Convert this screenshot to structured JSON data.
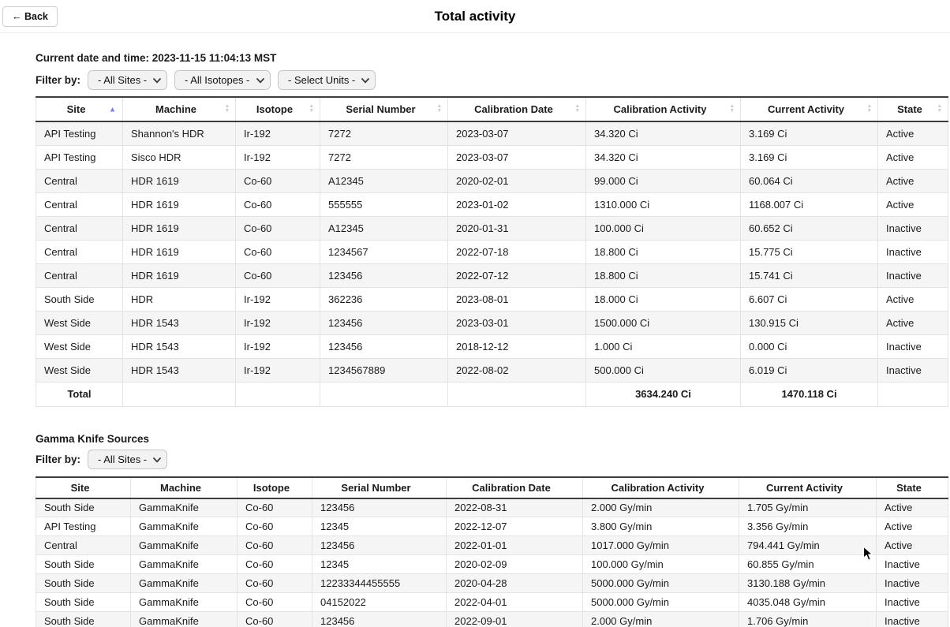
{
  "page": {
    "title": "Total activity",
    "back_label": "← Back"
  },
  "datetime_line": "Current date and time: 2023-11-15 11:04:13 MST",
  "hdr_section": {
    "filter_label": "Filter by:",
    "filters": [
      {
        "name": "sites",
        "value": "- All Sites -"
      },
      {
        "name": "isotopes",
        "value": "- All Isotopes -"
      },
      {
        "name": "units",
        "value": "- Select Units -"
      }
    ],
    "table": {
      "columns": [
        {
          "label": "Site",
          "sort": "asc"
        },
        {
          "label": "Machine",
          "sort": "none"
        },
        {
          "label": "Isotope",
          "sort": "none"
        },
        {
          "label": "Serial Number",
          "sort": "none"
        },
        {
          "label": "Calibration Date",
          "sort": "none"
        },
        {
          "label": "Calibration Activity",
          "sort": "none"
        },
        {
          "label": "Current Activity",
          "sort": "none"
        },
        {
          "label": "State",
          "sort": "none"
        }
      ],
      "rows": [
        [
          "API Testing",
          "Shannon's HDR",
          "Ir-192",
          "7272",
          "2023-03-07",
          "34.320 Ci",
          "3.169 Ci",
          "Active"
        ],
        [
          "API Testing",
          "Sisco HDR",
          "Ir-192",
          "7272",
          "2023-03-07",
          "34.320 Ci",
          "3.169 Ci",
          "Active"
        ],
        [
          "Central",
          "HDR 1619",
          "Co-60",
          "A12345",
          "2020-02-01",
          "99.000 Ci",
          "60.064 Ci",
          "Active"
        ],
        [
          "Central",
          "HDR 1619",
          "Co-60",
          "555555",
          "2023-01-02",
          "1310.000 Ci",
          "1168.007 Ci",
          "Active"
        ],
        [
          "Central",
          "HDR 1619",
          "Co-60",
          "A12345",
          "2020-01-31",
          "100.000 Ci",
          "60.652 Ci",
          "Inactive"
        ],
        [
          "Central",
          "HDR 1619",
          "Co-60",
          "1234567",
          "2022-07-18",
          "18.800 Ci",
          "15.775 Ci",
          "Inactive"
        ],
        [
          "Central",
          "HDR 1619",
          "Co-60",
          "123456",
          "2022-07-12",
          "18.800 Ci",
          "15.741 Ci",
          "Inactive"
        ],
        [
          "South Side",
          "HDR",
          "Ir-192",
          "362236",
          "2023-08-01",
          "18.000 Ci",
          "6.607 Ci",
          "Active"
        ],
        [
          "West Side",
          "HDR 1543",
          "Ir-192",
          "123456",
          "2023-03-01",
          "1500.000 Ci",
          "130.915 Ci",
          "Active"
        ],
        [
          "West Side",
          "HDR 1543",
          "Ir-192",
          "123456",
          "2018-12-12",
          "1.000 Ci",
          "0.000 Ci",
          "Inactive"
        ],
        [
          "West Side",
          "HDR 1543",
          "Ir-192",
          "1234567889",
          "2022-08-02",
          "500.000 Ci",
          "6.019 Ci",
          "Inactive"
        ]
      ],
      "total": {
        "label": "Total",
        "calibration_activity": "3634.240 Ci",
        "current_activity": "1470.118 Ci"
      }
    }
  },
  "gamma_section": {
    "heading": "Gamma Knife Sources",
    "filter_label": "Filter by:",
    "filters": [
      {
        "name": "sites",
        "value": "- All Sites -"
      }
    ],
    "table": {
      "columns": [
        {
          "label": "Site"
        },
        {
          "label": "Machine"
        },
        {
          "label": "Isotope"
        },
        {
          "label": "Serial Number"
        },
        {
          "label": "Calibration Date"
        },
        {
          "label": "Calibration Activity"
        },
        {
          "label": "Current Activity"
        },
        {
          "label": "State"
        }
      ],
      "rows": [
        [
          "South Side",
          "GammaKnife",
          "Co-60",
          "123456",
          "2022-08-31",
          "2.000 Gy/min",
          "1.705 Gy/min",
          "Active"
        ],
        [
          "API Testing",
          "GammaKnife",
          "Co-60",
          "12345",
          "2022-12-07",
          "3.800 Gy/min",
          "3.356 Gy/min",
          "Active"
        ],
        [
          "Central",
          "GammaKnife",
          "Co-60",
          "123456",
          "2022-01-01",
          "1017.000 Gy/min",
          "794.441 Gy/min",
          "Active"
        ],
        [
          "South Side",
          "GammaKnife",
          "Co-60",
          "12345",
          "2020-02-09",
          "100.000 Gy/min",
          "60.855 Gy/min",
          "Inactive"
        ],
        [
          "South Side",
          "GammaKnife",
          "Co-60",
          "12233344455555",
          "2020-04-28",
          "5000.000 Gy/min",
          "3130.188 Gy/min",
          "Inactive"
        ],
        [
          "South Side",
          "GammaKnife",
          "Co-60",
          "04152022",
          "2022-04-01",
          "5000.000 Gy/min",
          "4035.048 Gy/min",
          "Inactive"
        ],
        [
          "South Side",
          "GammaKnife",
          "Co-60",
          "123456",
          "2022-09-01",
          "2.000 Gy/min",
          "1.706 Gy/min",
          "Inactive"
        ]
      ]
    }
  },
  "colors": {
    "sort_active": "#7278e8",
    "sort_inactive": "#c8c8c8",
    "row_stripe": "#f5f5f5",
    "border_light": "#e3e3e3",
    "border_dark": "#3d3d3d"
  }
}
